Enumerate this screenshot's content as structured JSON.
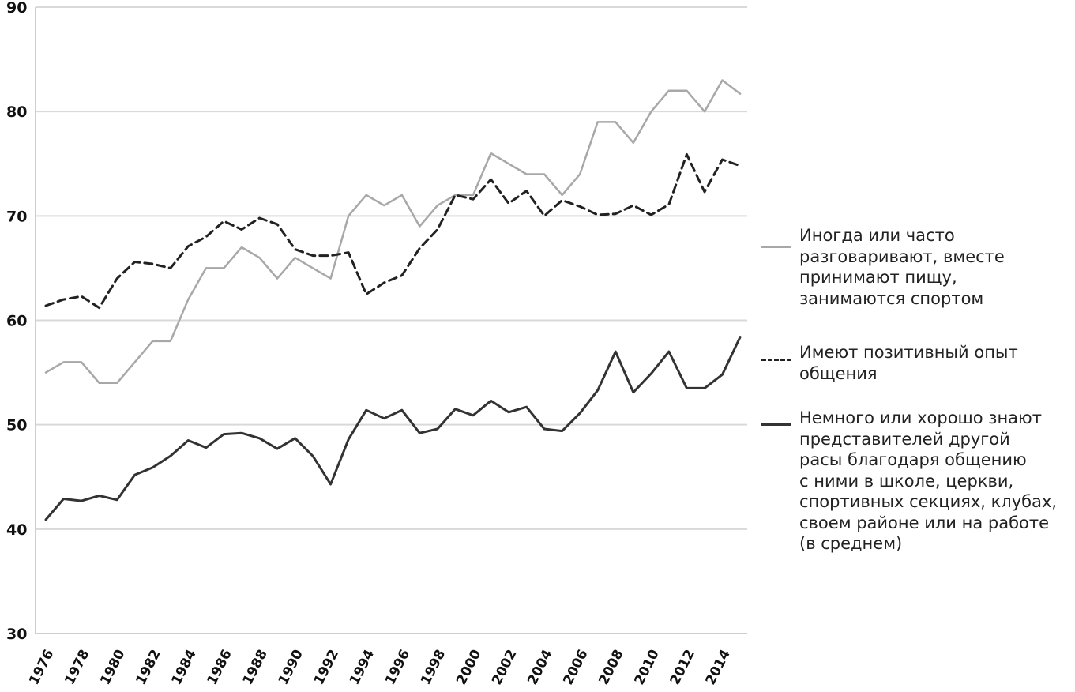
{
  "chart_data": {
    "type": "line",
    "ylim": [
      30,
      90
    ],
    "yticks": [
      30,
      40,
      50,
      60,
      70,
      80,
      90
    ],
    "x": [
      1976,
      1977,
      1978,
      1979,
      1980,
      1981,
      1982,
      1983,
      1984,
      1985,
      1986,
      1987,
      1988,
      1989,
      1990,
      1991,
      1992,
      1993,
      1994,
      1995,
      1996,
      1997,
      1998,
      1999,
      2000,
      2001,
      2002,
      2003,
      2004,
      2005,
      2006,
      2007,
      2008,
      2009,
      2010,
      2011,
      2012,
      2013,
      2014,
      2015
    ],
    "xtick_labels": [
      "1976",
      "1978",
      "1980",
      "1982",
      "1984",
      "1986",
      "1988",
      "1990",
      "1992",
      "1994",
      "1996",
      "1998",
      "2000",
      "2002",
      "2004",
      "2006",
      "2008",
      "2010",
      "2012",
      "2014"
    ],
    "grid": true,
    "legend_position": "right",
    "series": [
      {
        "name": "Иногда или часто\nразговаривают, вместе\nпринимают пищу,\nзанимаются спортом",
        "style": "solid-gray",
        "color": "#a8a8a8",
        "values": [
          55,
          56,
          56,
          54,
          54,
          56,
          58,
          58,
          62,
          65,
          65,
          67,
          66,
          64,
          66,
          65,
          64,
          70,
          72,
          71,
          72,
          69,
          71,
          72,
          72,
          76,
          75,
          74,
          74,
          72,
          74,
          79,
          79,
          77,
          80,
          82,
          82,
          80,
          83,
          81.7
        ]
      },
      {
        "name": "Имеют позитивный опыт\nобщения",
        "style": "dashed-dark",
        "color": "#222222",
        "values": [
          61.4,
          62,
          62.3,
          61.2,
          64,
          65.6,
          65.4,
          65,
          67.1,
          68,
          69.5,
          68.7,
          69.8,
          69.2,
          66.8,
          66.2,
          66.2,
          66.5,
          62.5,
          63.6,
          64.3,
          66.9,
          68.7,
          72,
          71.6,
          73.5,
          71.2,
          72.4,
          70,
          71.5,
          70.9,
          70.1,
          70.2,
          71,
          70.1,
          71.1,
          75.9,
          72.3,
          75.4,
          74.8
        ]
      },
      {
        "name": "Немного или хорошо знают\nпредставителей другой\nрасы благодаря общению\nс ними в школе, церкви,\nспортивных секциях, клубах,\nсвоем районе или на работе\n(в среднем)",
        "style": "solid-dark",
        "color": "#333333",
        "values": [
          40.9,
          42.9,
          42.7,
          43.2,
          42.8,
          45.2,
          45.9,
          47,
          48.5,
          47.8,
          49.1,
          49.2,
          48.7,
          47.7,
          48.7,
          47,
          44.3,
          48.6,
          51.4,
          50.6,
          51.4,
          49.2,
          49.6,
          51.5,
          50.9,
          52.3,
          51.2,
          51.7,
          49.6,
          49.4,
          51.1,
          53.3,
          57,
          53.1,
          54.9,
          57,
          53.5,
          53.5,
          54.8,
          58.4
        ]
      }
    ]
  }
}
